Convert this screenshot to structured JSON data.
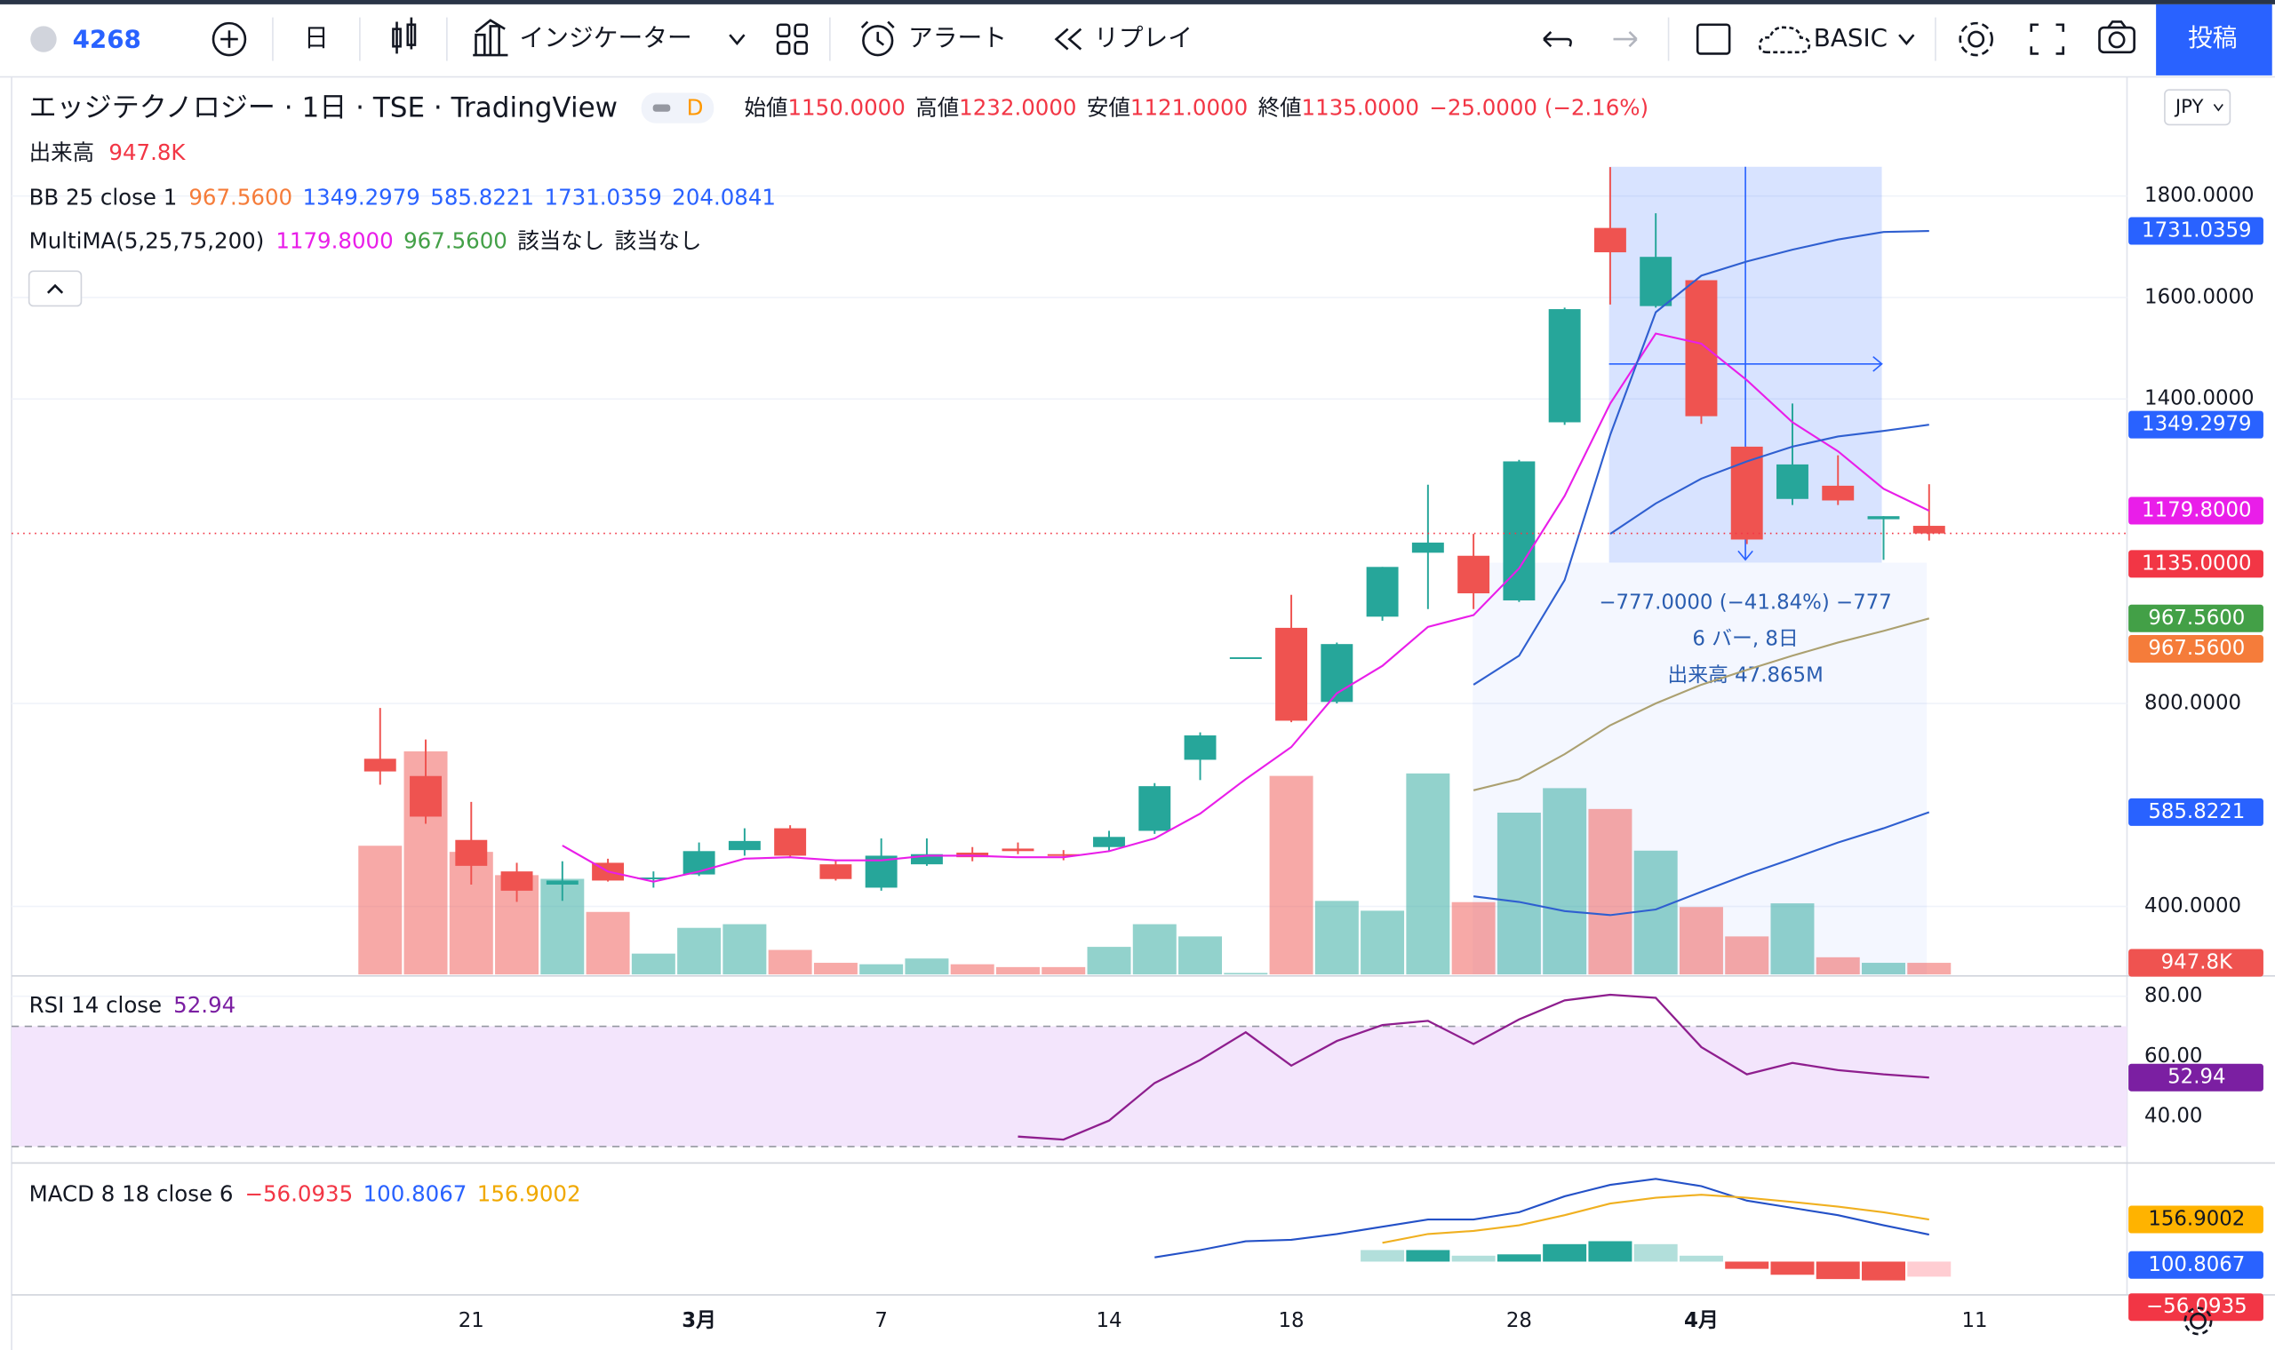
{
  "toolbar": {
    "symbol": "4268",
    "interval": "日",
    "indicators": "インジケーター",
    "alert": "アラート",
    "replay": "リプレイ",
    "layout": "BASIC",
    "publish": "投稿"
  },
  "legend": {
    "title": "エッジテクノロジー · 1日 · TSE · TradingView",
    "badge": "D",
    "ohlc": [
      {
        "label": "始値",
        "value": "1150.0000"
      },
      {
        "label": "高値",
        "value": "1232.0000"
      },
      {
        "label": "安値",
        "value": "1121.0000"
      },
      {
        "label": "終値",
        "value": "1135.0000"
      }
    ],
    "change": "−25.0000 (−2.16%)",
    "volume": {
      "name": "出来高",
      "value": "947.8K"
    },
    "bb": {
      "name": "BB 25 close 1",
      "values": [
        "967.5600",
        "1349.2979",
        "585.8221",
        "1731.0359",
        "204.0841"
      ]
    },
    "multima": {
      "name": "MultiMA(5,25,75,200)",
      "values": [
        "1179.8000",
        "967.5600",
        "該当なし",
        "該当なし"
      ]
    },
    "rsi": {
      "name": "RSI 14 close",
      "value": "52.94"
    },
    "macd": {
      "name": "MACD 8 18 close 6",
      "values": [
        "−56.0935",
        "100.8067",
        "156.9002"
      ]
    }
  },
  "currency": "JPY",
  "measure": {
    "change": "−777.0000 (−41.84%) −777",
    "bars": "6 バー, 8日",
    "volume": "出来高 47.865M"
  },
  "chart_data": [
    {
      "type": "candlestick",
      "categories": [
        null,
        null,
        "21",
        null,
        null,
        null,
        null,
        "3月",
        null,
        null,
        null,
        "7",
        null,
        null,
        null,
        null,
        "14",
        null,
        null,
        null,
        "18",
        null,
        null,
        null,
        null,
        "28",
        null,
        null,
        null,
        "4月",
        null,
        null,
        null,
        null,
        null,
        "11"
      ],
      "open": [
        691,
        657,
        531,
        469,
        443,
        486,
        454,
        463,
        511,
        554,
        483,
        437,
        483,
        506,
        514,
        503,
        517,
        549,
        689,
        891,
        949,
        803,
        971,
        1097,
        1091,
        1003,
        1354,
        1737,
        1583,
        1634,
        1306,
        1203,
        1229,
        1163,
        1150,
        null
      ],
      "high": [
        791,
        729,
        606,
        486,
        489,
        494,
        469,
        526,
        554,
        560,
        491,
        534,
        534,
        517,
        526,
        511,
        549,
        643,
        743,
        891,
        1014,
        920,
        1069,
        1231,
        1134,
        1280,
        1580,
        1857,
        1766,
        1634,
        1306,
        1391,
        1289,
        1169,
        1232,
        null
      ],
      "low": [
        640,
        563,
        443,
        409,
        411,
        449,
        437,
        460,
        500,
        497,
        451,
        431,
        480,
        489,
        503,
        491,
        509,
        543,
        649,
        891,
        763,
        800,
        963,
        986,
        986,
        1000,
        1349,
        1586,
        1580,
        1351,
        1114,
        1191,
        1191,
        1083,
        1121,
        null
      ],
      "close": [
        666,
        577,
        480,
        431,
        451,
        451,
        457,
        509,
        529,
        500,
        454,
        500,
        503,
        497,
        509,
        500,
        537,
        637,
        737,
        891,
        766,
        917,
        1069,
        1117,
        1017,
        1277,
        1577,
        1689,
        1680,
        1366,
        1123,
        1271,
        1200,
        1169,
        1135,
        null
      ],
      "volume": [
        10500000,
        18200000,
        10000000,
        8100000,
        7800000,
        5100000,
        1700000,
        3800000,
        4100000,
        2000000,
        950000,
        830000,
        1300000,
        830000,
        600000,
        600000,
        2250000,
        4100000,
        3100000,
        120000,
        16200000,
        6000000,
        5200000,
        16400000,
        5900000,
        13200000,
        15200000,
        13500000,
        10100000,
        5500000,
        3100000,
        5800000,
        1400000,
        950000,
        947800,
        null
      ],
      "volume_lim": [
        0,
        73000000
      ],
      "up_color": "#26a69a",
      "down_color": "#ef5350",
      "ylim": [
        266,
        2029
      ],
      "yticks": [
        {
          "value": 1800,
          "label": "1800.0000"
        },
        {
          "value": 1600,
          "label": "1600.0000"
        },
        {
          "value": 1400,
          "label": "1400.0000"
        },
        {
          "value": 800,
          "label": "800.0000"
        },
        {
          "value": 400,
          "label": "400.0000"
        }
      ],
      "grid": true,
      "series": [
        {
          "color": "#e91ee9",
          "values": [
            null,
            null,
            null,
            null,
            520,
            469,
            449,
            469,
            494,
            497,
            491,
            491,
            500,
            500,
            497,
            497,
            509,
            534,
            583,
            651,
            714,
            820,
            874,
            951,
            974,
            1066,
            1209,
            1391,
            1529,
            1509,
            1437,
            1354,
            1297,
            1223,
            1179.8,
            null
          ]
        },
        {
          "color": "#aba070",
          "values": [
            null,
            null,
            null,
            null,
            null,
            null,
            null,
            null,
            null,
            null,
            null,
            null,
            null,
            null,
            null,
            null,
            null,
            null,
            null,
            null,
            null,
            null,
            null,
            null,
            629,
            651,
            700,
            757,
            800,
            837,
            866,
            894,
            920,
            943,
            967.56,
            null
          ]
        },
        {
          "color": "#2f5fd0",
          "values": [
            null,
            null,
            null,
            null,
            null,
            null,
            null,
            null,
            null,
            null,
            null,
            null,
            null,
            null,
            null,
            null,
            null,
            null,
            null,
            null,
            null,
            null,
            null,
            null,
            837,
            894,
            1043,
            1329,
            1571,
            1643,
            1671,
            1694,
            1714,
            1729,
            1731.0359,
            null
          ]
        },
        {
          "color": "#2f5fd0",
          "values": [
            null,
            null,
            null,
            null,
            null,
            null,
            null,
            null,
            null,
            null,
            null,
            null,
            null,
            null,
            null,
            null,
            null,
            null,
            null,
            null,
            null,
            null,
            null,
            null,
            null,
            null,
            null,
            1134,
            1194,
            1243,
            1277,
            1306,
            1326,
            1337,
            1349.2979,
            null
          ]
        },
        {
          "color": "#2f5fd0",
          "values": [
            null,
            null,
            null,
            null,
            null,
            null,
            null,
            null,
            null,
            null,
            null,
            null,
            null,
            null,
            null,
            null,
            null,
            null,
            null,
            null,
            null,
            null,
            null,
            null,
            420,
            409,
            391,
            383,
            394,
            429,
            463,
            494,
            526,
            554,
            585.8221,
            null
          ]
        }
      ]
    },
    {
      "type": "line",
      "color": "#8e1e8e",
      "values": [
        null,
        null,
        null,
        null,
        null,
        null,
        null,
        null,
        null,
        null,
        null,
        null,
        null,
        null,
        33.3,
        32.3,
        38.6,
        51.1,
        58.8,
        68.0,
        56.9,
        65.1,
        70.4,
        71.8,
        64.1,
        72.3,
        78.6,
        80.5,
        79.5,
        63.1,
        54.0,
        57.8,
        55.4,
        54.0,
        52.94,
        null
      ],
      "ylim": [
        25.5,
        85.8
      ],
      "yticks": [
        {
          "value": 80,
          "label": "80.00"
        },
        {
          "value": 60,
          "label": "60.00"
        },
        {
          "value": 40,
          "label": "40.00"
        }
      ],
      "band": [
        30,
        70
      ],
      "band_color": "#f3e5fc"
    },
    {
      "type": "macd",
      "ylim": [
        -124,
        362
      ],
      "series": [
        {
          "type": "line",
          "color": "#2451c7",
          "values": [
            null,
            null,
            null,
            null,
            null,
            null,
            null,
            null,
            null,
            null,
            null,
            null,
            null,
            null,
            null,
            null,
            null,
            16,
            43,
            76,
            81,
            103,
            130,
            157,
            157,
            184,
            243,
            286,
            308,
            281,
            227,
            200,
            173,
            135,
            100.8067,
            null
          ]
        },
        {
          "type": "line",
          "color": "#f0b020",
          "values": [
            null,
            null,
            null,
            null,
            null,
            null,
            null,
            null,
            null,
            null,
            null,
            null,
            null,
            null,
            null,
            null,
            null,
            null,
            null,
            null,
            null,
            null,
            70,
            103,
            114,
            135,
            173,
            216,
            238,
            249,
            238,
            222,
            205,
            184,
            156.9002,
            null
          ]
        },
        {
          "type": "bar",
          "colors": {
            "pos_rise": "#26a69a",
            "pos_fall": "#b2dfdb",
            "neg_fall": "#ef5350",
            "neg_rise": "#ffcdd2"
          },
          "values": [
            null,
            null,
            null,
            null,
            null,
            null,
            null,
            null,
            null,
            null,
            null,
            null,
            null,
            null,
            null,
            null,
            null,
            null,
            null,
            null,
            null,
            null,
            43,
            43,
            22,
            27,
            65,
            76,
            65,
            22,
            -27,
            -49,
            -65,
            -70,
            -56.0935,
            null
          ]
        }
      ]
    }
  ]
}
